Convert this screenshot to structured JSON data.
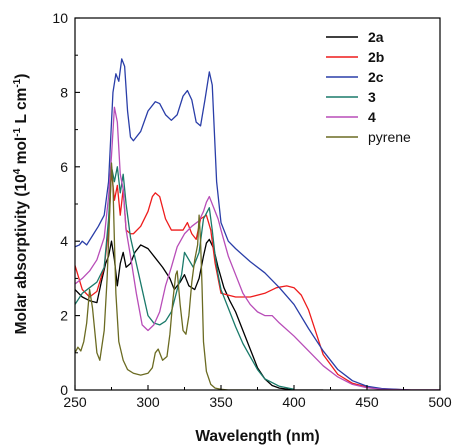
{
  "chart_data": {
    "type": "line",
    "title": "",
    "xlabel": "Wavelength (nm)",
    "ylabel": {
      "prefix": "Molar absorptivity (10",
      "exp1": "4",
      "middle": " mol",
      "exp2": "-1",
      "middle2": " L cm",
      "exp3": "-1",
      "suffix": ")"
    },
    "xlim": [
      250,
      500
    ],
    "ylim": [
      0,
      10
    ],
    "xticks": [
      "250",
      "300",
      "350",
      "400",
      "450",
      "500"
    ],
    "yticks": [
      "0",
      "2",
      "4",
      "6",
      "8",
      "10"
    ],
    "legend_position": "top-right",
    "series": [
      {
        "name": "2a",
        "color": "#000000",
        "bold": true,
        "x": [
          250,
          255,
          260,
          265,
          268,
          271,
          273,
          275,
          277,
          279,
          281,
          283,
          285,
          288,
          291,
          295,
          300,
          305,
          310,
          315,
          318,
          322,
          325,
          328,
          332,
          335,
          338,
          340,
          342,
          345,
          348,
          352,
          356,
          360,
          365,
          370,
          375,
          380,
          385,
          390,
          400,
          420
        ],
        "y": [
          2.7,
          2.5,
          2.4,
          2.35,
          2.9,
          3.4,
          3.6,
          4.0,
          3.5,
          2.8,
          3.4,
          3.7,
          3.3,
          3.4,
          3.7,
          3.9,
          3.8,
          3.55,
          3.3,
          3.0,
          2.7,
          2.9,
          3.1,
          2.8,
          2.7,
          3.0,
          3.6,
          3.95,
          4.05,
          3.8,
          3.3,
          2.75,
          2.4,
          2.1,
          1.6,
          1.1,
          0.6,
          0.3,
          0.12,
          0.05,
          0.0,
          0.0
        ]
      },
      {
        "name": "2b",
        "color": "#ee1c1c",
        "bold": true,
        "x": [
          250,
          255,
          260,
          265,
          270,
          273,
          275,
          277,
          279,
          281,
          283,
          285,
          288,
          290,
          295,
          300,
          303,
          305,
          308,
          312,
          316,
          320,
          324,
          327,
          330,
          333,
          336,
          340,
          343,
          346,
          350,
          355,
          360,
          370,
          380,
          388,
          395,
          400,
          405,
          410,
          415,
          420,
          430,
          440,
          450,
          460,
          480,
          500
        ],
        "y": [
          3.35,
          2.7,
          2.5,
          2.65,
          3.3,
          4.3,
          5.9,
          5.1,
          5.5,
          4.7,
          5.4,
          4.3,
          4.2,
          4.2,
          4.4,
          4.8,
          5.2,
          5.3,
          5.2,
          4.6,
          4.3,
          4.3,
          4.3,
          4.5,
          4.2,
          4.05,
          4.6,
          4.7,
          4.3,
          3.4,
          2.6,
          2.55,
          2.5,
          2.5,
          2.6,
          2.75,
          2.8,
          2.75,
          2.55,
          2.15,
          1.55,
          0.95,
          0.42,
          0.18,
          0.08,
          0.03,
          0.0,
          0.0
        ]
      },
      {
        "name": "2c",
        "color": "#2a3ea8",
        "bold": true,
        "x": [
          250,
          253,
          255,
          258,
          262,
          266,
          270,
          273,
          276,
          278,
          280,
          282,
          284,
          286,
          288,
          290,
          295,
          300,
          305,
          308,
          312,
          316,
          320,
          324,
          327,
          330,
          333,
          336,
          339,
          342,
          344,
          347,
          350,
          355,
          360,
          370,
          380,
          390,
          400,
          410,
          420,
          430,
          440,
          450,
          460,
          480,
          500
        ],
        "y": [
          3.85,
          3.9,
          4.0,
          3.9,
          4.15,
          4.4,
          4.7,
          5.6,
          8.0,
          8.5,
          8.3,
          8.9,
          8.7,
          7.5,
          6.8,
          6.7,
          6.95,
          7.5,
          7.75,
          7.7,
          7.4,
          7.25,
          7.4,
          7.9,
          8.05,
          7.8,
          7.2,
          7.1,
          7.8,
          8.55,
          8.2,
          5.6,
          4.5,
          4.0,
          3.8,
          3.45,
          3.15,
          2.75,
          2.3,
          1.65,
          1.05,
          0.55,
          0.25,
          0.1,
          0.04,
          0.0,
          0.0
        ]
      },
      {
        "name": "3",
        "color": "#1a7a6a",
        "bold": true,
        "x": [
          250,
          255,
          260,
          265,
          270,
          273,
          275,
          277,
          279,
          281,
          283,
          285,
          288,
          292,
          296,
          300,
          304,
          308,
          312,
          316,
          320,
          323,
          325,
          328,
          331,
          335,
          338,
          340,
          342,
          344,
          346,
          348,
          350,
          355,
          360,
          365,
          370,
          375,
          380,
          390,
          400
        ],
        "y": [
          2.3,
          2.6,
          2.75,
          2.9,
          3.3,
          4.6,
          6.0,
          5.6,
          6.0,
          5.3,
          5.8,
          5.0,
          4.1,
          3.4,
          2.7,
          2.0,
          1.8,
          1.75,
          1.85,
          2.1,
          2.7,
          3.1,
          3.7,
          3.5,
          3.3,
          3.7,
          4.6,
          4.75,
          4.9,
          4.3,
          3.6,
          3.1,
          2.7,
          2.2,
          1.7,
          1.25,
          0.9,
          0.55,
          0.3,
          0.1,
          0.02
        ]
      },
      {
        "name": "4",
        "color": "#b84db8",
        "bold": true,
        "x": [
          250,
          255,
          260,
          265,
          270,
          273,
          275,
          277,
          279,
          281,
          283,
          285,
          288,
          292,
          296,
          300,
          304,
          308,
          312,
          316,
          320,
          325,
          330,
          335,
          338,
          340,
          342,
          345,
          348,
          350,
          355,
          360,
          365,
          370,
          375,
          380,
          385,
          390,
          400,
          410,
          420,
          430,
          440,
          450,
          460,
          480,
          500
        ],
        "y": [
          2.85,
          3.0,
          3.2,
          3.5,
          4.1,
          5.2,
          6.3,
          7.6,
          7.2,
          5.8,
          5.4,
          4.3,
          3.6,
          2.6,
          1.75,
          1.6,
          1.75,
          2.1,
          2.8,
          3.3,
          3.85,
          4.2,
          4.4,
          4.55,
          4.8,
          5.05,
          5.2,
          4.9,
          4.6,
          4.3,
          3.6,
          3.1,
          2.6,
          2.3,
          2.1,
          2.0,
          2.0,
          1.8,
          1.45,
          1.05,
          0.65,
          0.35,
          0.15,
          0.06,
          0.02,
          0.0,
          0.0
        ]
      },
      {
        "name": "pyrene",
        "color": "#6b6b22",
        "bold": false,
        "x": [
          250,
          252,
          254,
          256,
          258,
          260,
          262,
          263,
          265,
          267,
          270,
          272,
          274,
          275,
          276,
          277,
          278,
          280,
          283,
          286,
          290,
          295,
          300,
          303,
          305,
          307,
          310,
          313,
          315,
          317,
          319,
          320,
          322,
          324,
          326,
          328,
          330,
          332,
          334,
          335,
          336,
          337,
          338,
          340,
          343,
          346,
          350,
          355,
          360,
          370
        ],
        "y": [
          1.0,
          1.15,
          1.05,
          1.3,
          1.8,
          2.7,
          2.2,
          1.8,
          1.0,
          0.8,
          1.6,
          3.0,
          5.0,
          6.1,
          5.5,
          4.0,
          2.6,
          1.3,
          0.8,
          0.55,
          0.45,
          0.4,
          0.45,
          0.6,
          1.0,
          1.1,
          0.8,
          0.9,
          1.5,
          2.4,
          3.1,
          3.2,
          2.3,
          1.6,
          1.5,
          2.0,
          2.9,
          3.5,
          3.9,
          4.7,
          4.0,
          2.8,
          1.3,
          0.5,
          0.15,
          0.05,
          0.02,
          0.0,
          0.0,
          0.0
        ]
      }
    ]
  }
}
